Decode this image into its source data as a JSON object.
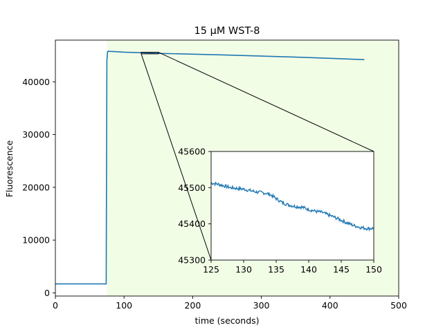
{
  "chart_data": [
    {
      "type": "line",
      "title": "15 µM WST-8",
      "xlabel": "time (seconds)",
      "ylabel": "Fluorescence",
      "xlim": [
        0,
        500
      ],
      "ylim": [
        -600,
        47900
      ],
      "xticks": [
        0,
        100,
        200,
        300,
        400,
        500
      ],
      "yticks": [
        0,
        10000,
        20000,
        30000,
        40000
      ],
      "grid": false,
      "colors": {
        "line": "#1f77b4",
        "shade": "#f2fde6"
      },
      "shaded_region": {
        "x_from": 75,
        "x_to": 500
      },
      "series": [
        {
          "x": [
            0,
            10,
            20,
            30,
            40,
            50,
            60,
            70,
            74,
            75,
            76,
            77,
            80,
            90,
            100,
            125,
            150,
            200,
            250,
            300,
            350,
            400,
            450
          ],
          "y": [
            1700,
            1700,
            1700,
            1700,
            1700,
            1700,
            1700,
            1700,
            1700,
            44000,
            45700,
            45800,
            45760,
            45690,
            45610,
            45510,
            45390,
            45240,
            45070,
            44880,
            44680,
            44450,
            44200
          ]
        }
      ]
    },
    {
      "type": "line",
      "role": "inset zoom",
      "xlim": [
        125,
        150
      ],
      "ylim": [
        45300,
        45600
      ],
      "xticks": [
        125,
        130,
        135,
        140,
        145,
        150
      ],
      "yticks": [
        45300,
        45400,
        45500,
        45600
      ],
      "grid": false,
      "series": [
        {
          "x": [
            125,
            126,
            127,
            128,
            129,
            130,
            131,
            132,
            133,
            134,
            135,
            136,
            137,
            138,
            139,
            140,
            141,
            142,
            143,
            144,
            145,
            146,
            147,
            148,
            149,
            150
          ],
          "y": [
            45513,
            45510,
            45505,
            45500,
            45498,
            45496,
            45492,
            45488,
            45486,
            45482,
            45470,
            45458,
            45452,
            45448,
            45446,
            45440,
            45435,
            45432,
            45425,
            45418,
            45410,
            45402,
            45395,
            45390,
            45387,
            45388
          ]
        }
      ]
    }
  ]
}
